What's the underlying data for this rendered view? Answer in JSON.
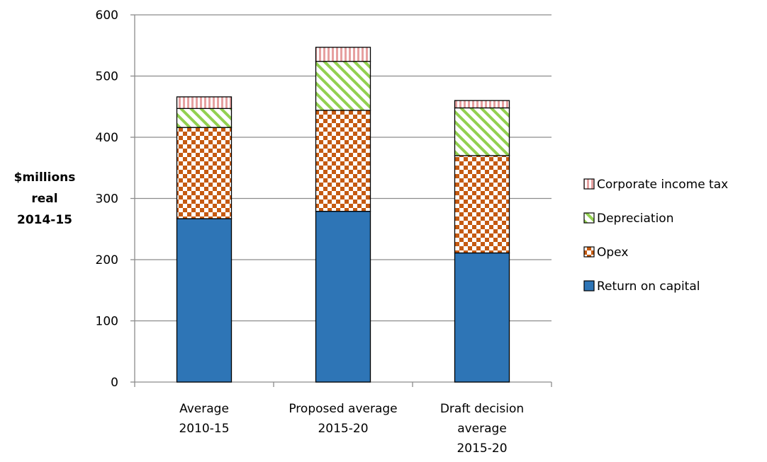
{
  "chart_data": {
    "type": "bar",
    "stacked": true,
    "ylabel_lines": [
      "$millions",
      "real",
      "2014-15"
    ],
    "ylim": [
      0,
      600
    ],
    "yticks": [
      0,
      100,
      200,
      300,
      400,
      500,
      600
    ],
    "grid": true,
    "legend_position": "right",
    "categories": [
      [
        "Average",
        "2010-15"
      ],
      [
        "Proposed average",
        "2015-20"
      ],
      [
        "Draft decision",
        "average",
        "2015-20"
      ]
    ],
    "series": [
      {
        "name": "Return on capital",
        "values": [
          267,
          279,
          211
        ],
        "color": "#2e75b6",
        "pattern": "solid"
      },
      {
        "name": "Opex",
        "values": [
          149,
          165,
          159
        ],
        "color": "#c55a11",
        "pattern": "checker"
      },
      {
        "name": "Depreciation",
        "values": [
          31,
          80,
          78
        ],
        "color": "#70ad47",
        "pattern": "diagonal"
      },
      {
        "name": "Corporate income tax",
        "values": [
          19,
          23,
          12
        ],
        "color": "#c0504d",
        "pattern": "vertical"
      }
    ]
  }
}
